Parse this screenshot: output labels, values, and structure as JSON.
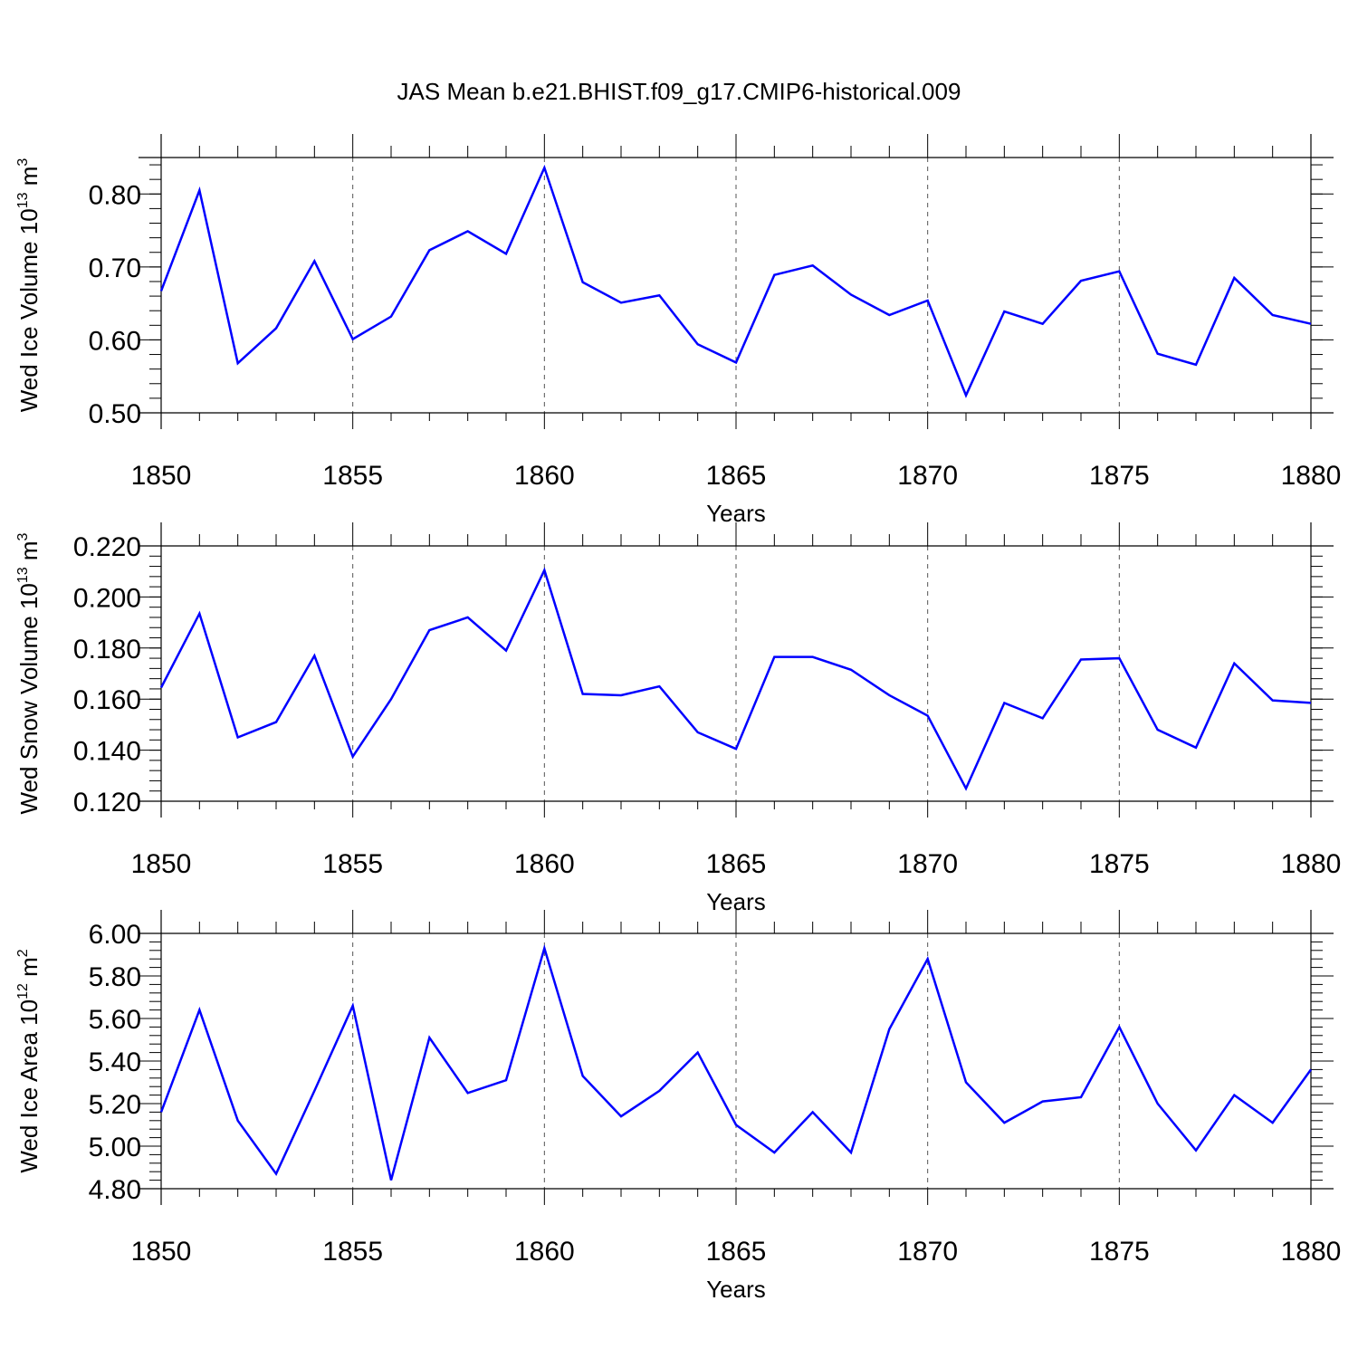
{
  "title": "JAS Mean b.e21.BHIST.f09_g17.CMIP6-historical.009",
  "chart_data": [
    {
      "type": "line",
      "ylabel": "Wed Ice Volume 10",
      "ylabel_exp": "13",
      "ylabel_unit": " m",
      "ylabel_unit_exp": "3",
      "xlabel": "Years",
      "xlim": [
        1850,
        1880
      ],
      "ylim": [
        0.5,
        0.85
      ],
      "yticks": [
        0.5,
        0.6,
        0.7,
        0.8
      ],
      "ytick_labels": [
        "0.50",
        "0.60",
        "0.70",
        "0.80"
      ],
      "xticks": [
        1850,
        1855,
        1860,
        1865,
        1870,
        1875,
        1880
      ],
      "xtick_labels": [
        "1850",
        "1855",
        "1860",
        "1865",
        "1870",
        "1875",
        "1880"
      ],
      "color": "#0000ff",
      "x": [
        1850,
        1851,
        1852,
        1853,
        1854,
        1855,
        1856,
        1857,
        1858,
        1859,
        1860,
        1861,
        1862,
        1863,
        1864,
        1865,
        1866,
        1867,
        1868,
        1869,
        1870,
        1871,
        1872,
        1873,
        1874,
        1875,
        1876,
        1877,
        1878,
        1879,
        1880
      ],
      "y": [
        0.667,
        0.805,
        0.568,
        0.616,
        0.708,
        0.601,
        0.632,
        0.723,
        0.749,
        0.718,
        0.836,
        0.679,
        0.651,
        0.661,
        0.594,
        0.569,
        0.689,
        0.702,
        0.662,
        0.634,
        0.654,
        0.524,
        0.639,
        0.622,
        0.681,
        0.694,
        0.581,
        0.566,
        0.685,
        0.634,
        0.622
      ]
    },
    {
      "type": "line",
      "ylabel": "Wed Snow Volume 10",
      "ylabel_exp": "13",
      "ylabel_unit": " m",
      "ylabel_unit_exp": "3",
      "xlabel": "Years",
      "xlim": [
        1850,
        1880
      ],
      "ylim": [
        0.12,
        0.22
      ],
      "yticks": [
        0.12,
        0.14,
        0.16,
        0.18,
        0.2,
        0.22
      ],
      "ytick_labels": [
        "0.120",
        "0.140",
        "0.160",
        "0.180",
        "0.200",
        "0.220"
      ],
      "xticks": [
        1850,
        1855,
        1860,
        1865,
        1870,
        1875,
        1880
      ],
      "xtick_labels": [
        "1850",
        "1855",
        "1860",
        "1865",
        "1870",
        "1875",
        "1880"
      ],
      "color": "#0000ff",
      "x": [
        1850,
        1851,
        1852,
        1853,
        1854,
        1855,
        1856,
        1857,
        1858,
        1859,
        1860,
        1861,
        1862,
        1863,
        1864,
        1865,
        1866,
        1867,
        1868,
        1869,
        1870,
        1871,
        1872,
        1873,
        1874,
        1875,
        1876,
        1877,
        1878,
        1879,
        1880
      ],
      "y": [
        0.1645,
        0.1935,
        0.145,
        0.151,
        0.177,
        0.1375,
        0.16,
        0.187,
        0.192,
        0.179,
        0.2105,
        0.162,
        0.1615,
        0.165,
        0.147,
        0.1405,
        0.1765,
        0.1765,
        0.1715,
        0.1615,
        0.1535,
        0.125,
        0.1585,
        0.1525,
        0.1755,
        0.176,
        0.148,
        0.141,
        0.174,
        0.1595,
        0.1585
      ]
    },
    {
      "type": "line",
      "ylabel": "Wed Ice Area 10",
      "ylabel_exp": "12",
      "ylabel_unit": " m",
      "ylabel_unit_exp": "2",
      "xlabel": "Years",
      "xlim": [
        1850,
        1880
      ],
      "ylim": [
        4.8,
        6.0
      ],
      "yticks": [
        4.8,
        5.0,
        5.2,
        5.4,
        5.6,
        5.8,
        6.0
      ],
      "ytick_labels": [
        "4.80",
        "5.00",
        "5.20",
        "5.40",
        "5.60",
        "5.80",
        "6.00"
      ],
      "xticks": [
        1850,
        1855,
        1860,
        1865,
        1870,
        1875,
        1880
      ],
      "xtick_labels": [
        "1850",
        "1855",
        "1860",
        "1865",
        "1870",
        "1875",
        "1880"
      ],
      "color": "#0000ff",
      "x": [
        1850,
        1851,
        1852,
        1853,
        1854,
        1855,
        1856,
        1857,
        1858,
        1859,
        1860,
        1861,
        1862,
        1863,
        1864,
        1865,
        1866,
        1867,
        1868,
        1869,
        1870,
        1871,
        1872,
        1873,
        1874,
        1875,
        1876,
        1877,
        1878,
        1879,
        1880
      ],
      "y": [
        5.16,
        5.64,
        5.12,
        4.87,
        5.26,
        5.66,
        4.84,
        5.51,
        5.25,
        5.31,
        5.93,
        5.33,
        5.14,
        5.26,
        5.44,
        5.1,
        4.97,
        5.16,
        4.97,
        5.55,
        5.88,
        5.3,
        5.11,
        5.21,
        5.23,
        5.56,
        5.2,
        4.98,
        5.24,
        5.11,
        5.36
      ]
    }
  ]
}
